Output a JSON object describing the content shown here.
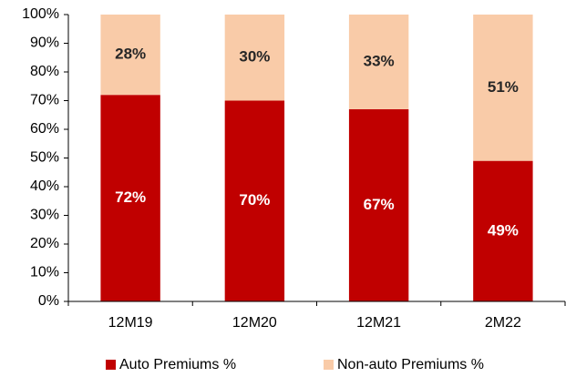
{
  "chart_data": {
    "type": "stacked_bar",
    "categories": [
      "12M19",
      "12M20",
      "12M21",
      "2M22"
    ],
    "series": [
      {
        "name": "Auto Premiums %",
        "color": "#c00000",
        "label_color": "#ffffff",
        "values": [
          72,
          70,
          67,
          49
        ],
        "value_labels": [
          "72%",
          "70%",
          "67%",
          "49%"
        ]
      },
      {
        "name": "Non-auto Premiums %",
        "color": "#f9cba8",
        "label_color": "#262626",
        "values": [
          28,
          30,
          33,
          51
        ],
        "value_labels": [
          "28%",
          "30%",
          "33%",
          "51%"
        ]
      }
    ],
    "ylim": [
      0,
      100
    ],
    "yticks": [
      {
        "value": 0,
        "label": "0%"
      },
      {
        "value": 10,
        "label": "10%"
      },
      {
        "value": 20,
        "label": "20%"
      },
      {
        "value": 30,
        "label": "30%"
      },
      {
        "value": 40,
        "label": "40%"
      },
      {
        "value": 50,
        "label": "50%"
      },
      {
        "value": 60,
        "label": "60%"
      },
      {
        "value": 70,
        "label": "70%"
      },
      {
        "value": 80,
        "label": "80%"
      },
      {
        "value": 90,
        "label": "90%"
      },
      {
        "value": 100,
        "label": "100%"
      }
    ],
    "grid": false,
    "legend": "bottom"
  }
}
